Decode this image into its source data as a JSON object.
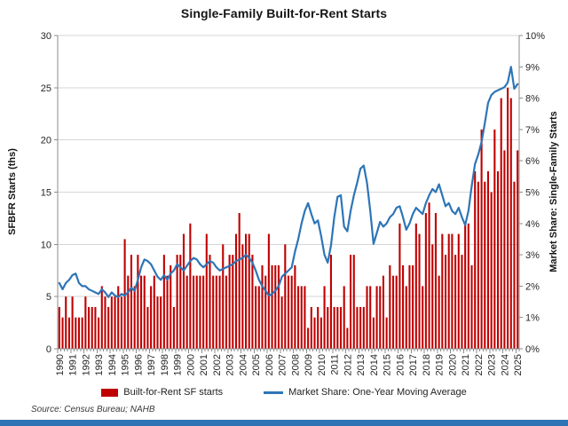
{
  "page": {
    "background": "#FFFFFF",
    "footer_bar_color": "#2E74B5"
  },
  "chart": {
    "title": "Single-Family Built-for-Rent Starts",
    "left_axis": {
      "title": "SFBFR Starts (ths)",
      "min": 0,
      "max": 30,
      "ticks": [
        "0",
        "5",
        "10",
        "15",
        "20",
        "25",
        "30"
      ]
    },
    "right_axis": {
      "title": "Market Share: Single-Family Starts",
      "min": 0,
      "max": 10,
      "ticks": [
        "0%",
        "1%",
        "2%",
        "3%",
        "4%",
        "5%",
        "6%",
        "7%",
        "8%",
        "9%",
        "10%"
      ]
    },
    "x_axis": {
      "years": [
        1990,
        1991,
        1992,
        1993,
        1994,
        1995,
        1996,
        1997,
        1998,
        1999,
        2000,
        2001,
        2002,
        2003,
        2004,
        2005,
        2006,
        2007,
        2008,
        2009,
        2010,
        2011,
        2012,
        2013,
        2014,
        2015,
        2016,
        2017,
        2018,
        2019,
        2020,
        2021,
        2022,
        2023,
        2024,
        2025
      ]
    },
    "legend": [
      {
        "label": "Built-for-Rent SF starts",
        "color": "#C00000",
        "type": "bar"
      },
      {
        "label": "Market Share: One-Year Moving Average",
        "color": "#2E75B6",
        "type": "line"
      }
    ],
    "source": "Source: Census Bureau; NAHB",
    "colors": {
      "bars": "#C00000",
      "line": "#2E75B6",
      "gridline": "#D6D6D6",
      "axis": "#8C8C8C",
      "tick_label": "#262626"
    }
  },
  "chart_data": {
    "type": "bar",
    "title": "Single-Family Built-for-Rent Starts",
    "x_unit": "quarter",
    "start_quarter": "1990 Q1",
    "end_quarter": "2025 Q1",
    "quarters_per_year": 4,
    "ylabel_left": "SFBFR Starts (ths)",
    "ylabel_right": "Market Share: Single-Family Starts",
    "ylim_left": [
      0,
      30
    ],
    "ylim_right_percent": [
      0,
      10
    ],
    "grid": "horizontal-only",
    "legend_position": "bottom",
    "series": [
      {
        "name": "Built-for-Rent SF starts",
        "type": "bar",
        "axis": "left",
        "color": "#C00000",
        "values": [
          4,
          3,
          5,
          3,
          5,
          3,
          3,
          3,
          5,
          4,
          4,
          4,
          3,
          6,
          5,
          4,
          5,
          5,
          6,
          5,
          10.5,
          7,
          9,
          6,
          9,
          7,
          7,
          4,
          6,
          7,
          5,
          5,
          9,
          7,
          8,
          4,
          9,
          9,
          11,
          7,
          12,
          7,
          7,
          7,
          7,
          11,
          9,
          7,
          7,
          7,
          10,
          7,
          9,
          9,
          11,
          13,
          10,
          11,
          11,
          9,
          6,
          6,
          8,
          7,
          11,
          8,
          8,
          8,
          5,
          10,
          7,
          7,
          8,
          6,
          6,
          6,
          2,
          4,
          3,
          4,
          3,
          6,
          4,
          9,
          4,
          4,
          4,
          6,
          2,
          9,
          9,
          4,
          4,
          4,
          6,
          6,
          3,
          6,
          6,
          7,
          3,
          8,
          7,
          7,
          12,
          8,
          6,
          8,
          8,
          12,
          11,
          6,
          13,
          14,
          10,
          13,
          7,
          11,
          9,
          11,
          11,
          9,
          11,
          9,
          12,
          12,
          8,
          17,
          16,
          21,
          16,
          17,
          15,
          21,
          17,
          24,
          19,
          25,
          24,
          16,
          19
        ]
      },
      {
        "name": "Market Share: One-Year Moving Average",
        "type": "line",
        "axis": "right",
        "unit": "percent",
        "color": "#2E75B6",
        "values": [
          2.1,
          1.9,
          2.1,
          2.2,
          2.35,
          2.4,
          2.1,
          2.0,
          2.0,
          1.9,
          1.85,
          1.8,
          1.75,
          1.9,
          1.8,
          1.65,
          1.8,
          1.7,
          1.65,
          1.75,
          1.7,
          1.8,
          1.95,
          1.85,
          2.2,
          2.6,
          2.85,
          2.8,
          2.7,
          2.5,
          2.3,
          2.2,
          2.35,
          2.2,
          2.4,
          2.5,
          2.7,
          2.6,
          2.5,
          2.65,
          2.8,
          2.9,
          2.85,
          2.7,
          2.6,
          2.7,
          2.8,
          2.75,
          2.6,
          2.5,
          2.55,
          2.6,
          2.65,
          2.7,
          2.8,
          2.85,
          2.9,
          3.0,
          2.9,
          2.75,
          2.5,
          2.2,
          2.0,
          1.85,
          1.7,
          1.75,
          1.85,
          2.0,
          2.3,
          2.4,
          2.5,
          2.6,
          3.1,
          3.5,
          4.0,
          4.4,
          4.65,
          4.3,
          4.0,
          4.1,
          3.6,
          3.0,
          2.75,
          3.3,
          4.2,
          4.85,
          4.9,
          3.9,
          3.75,
          4.4,
          4.9,
          5.3,
          5.75,
          5.85,
          5.3,
          4.4,
          3.35,
          3.7,
          4.05,
          3.9,
          4.0,
          4.2,
          4.3,
          4.5,
          4.55,
          4.2,
          3.8,
          4.0,
          4.3,
          4.5,
          4.4,
          4.3,
          4.65,
          4.9,
          5.1,
          5.0,
          5.25,
          4.9,
          4.55,
          4.65,
          4.4,
          4.3,
          4.5,
          4.2,
          3.95,
          4.4,
          5.2,
          5.9,
          6.2,
          6.6,
          7.2,
          7.85,
          8.1,
          8.2,
          8.25,
          8.3,
          8.35,
          8.5,
          9.0,
          8.3,
          8.45
        ]
      }
    ]
  }
}
